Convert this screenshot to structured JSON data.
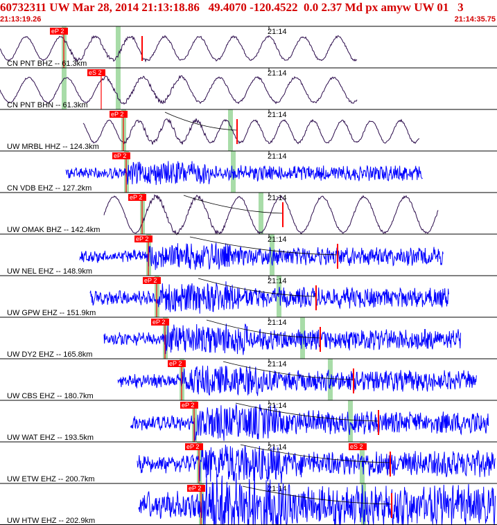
{
  "header": {
    "title": "60732311 UW Mar 28, 2014 21:13:18.86   49.4070 -120.4522  0.0 2.37 Md px amyw UW 01   3",
    "time_start": "21:13:19.26",
    "time_end": "21:14:35.75"
  },
  "colors": {
    "header_text": "#d40000",
    "broadband_trace": "#2a0a4a",
    "short_period_trace": "#0000ff",
    "pick_box": "#ff0000",
    "pick_line": "#ff0000",
    "window_band": "#a8dca8"
  },
  "minute_tick_label": "21:14",
  "traces": [
    {
      "label": "CN PNT BHZ -- 61.3km",
      "pick": "eP 2",
      "type": "bb",
      "start": 0,
      "end": 515,
      "amp": 17,
      "period": 50,
      "pick_x": 92,
      "s_x": 205,
      "s_label": "",
      "green1": 92,
      "green2": 170
    },
    {
      "label": "CN PNT BHN -- 61.3km",
      "pick": "eS 2",
      "type": "bb",
      "start": 0,
      "end": 515,
      "amp": 18,
      "period": 55,
      "pick_x": 146,
      "s_x": 0,
      "s_label": "",
      "green1": 92,
      "green2": 170
    },
    {
      "label": "UW MRBL HHZ -- 124.3km",
      "pick": "eP 2",
      "type": "bb",
      "start": 120,
      "end": 605,
      "amp": 16,
      "period": 42,
      "pick_x": 178,
      "s_x": 342,
      "s_label": "",
      "green1": 178,
      "green2": 332
    },
    {
      "label": "CN VDB EHZ -- 127.2km",
      "pick": "eP 2",
      "type": "sp",
      "start": 95,
      "end": 610,
      "amp": 6,
      "period": 6,
      "pick_x": 182,
      "s_x": 0,
      "s_label": "",
      "green1": 182,
      "green2": 336
    },
    {
      "label": "UW OMAK BHZ -- 142.4km",
      "pick": "eP 2",
      "type": "bb",
      "start": 150,
      "end": 632,
      "amp": 26,
      "period": 60,
      "pick_x": 205,
      "s_x": 408,
      "s_label": "",
      "green1": 205,
      "green2": 376
    },
    {
      "label": "UW NEL EHZ -- 148.9km",
      "pick": "eP 2",
      "type": "sp",
      "start": 115,
      "end": 640,
      "amp": 7,
      "period": 6,
      "pick_x": 214,
      "s_x": 487,
      "s_label": "",
      "green1": 214,
      "green2": 392
    },
    {
      "label": "UW GPW EHZ -- 151.9km",
      "pick": "eP 2",
      "type": "sp",
      "start": 130,
      "end": 648,
      "amp": 8,
      "period": 6,
      "pick_x": 226,
      "s_x": 456,
      "s_label": "",
      "green1": 226,
      "green2": 402
    },
    {
      "label": "UW DY2 EHZ -- 165.8km",
      "pick": "eP 2",
      "type": "sp",
      "start": 150,
      "end": 665,
      "amp": 8,
      "period": 6,
      "pick_x": 238,
      "s_x": 462,
      "s_label": "",
      "green1": 238,
      "green2": 436
    },
    {
      "label": "UW CBS EHZ -- 180.7km",
      "pick": "eP 2",
      "type": "sp",
      "start": 170,
      "end": 688,
      "amp": 8,
      "period": 6,
      "pick_x": 262,
      "s_x": 510,
      "s_label": "",
      "green1": 262,
      "green2": 476
    },
    {
      "label": "UW WAT EHZ -- 193.5km",
      "pick": "eP 2",
      "type": "sp",
      "start": 188,
      "end": 705,
      "amp": 9,
      "period": 6,
      "pick_x": 280,
      "s_x": 546,
      "s_label": "",
      "green1": 280,
      "green2": 505
    },
    {
      "label": "UW ETW EHZ -- 200.7km",
      "pick": "eP 2",
      "type": "sp",
      "start": 198,
      "end": 715,
      "amp": 10,
      "period": 6,
      "pick_x": 287,
      "s_x": 563,
      "s_label": "eS 2",
      "green1": 287,
      "green2": 522
    },
    {
      "label": "UW HTW EHZ -- 202.9km",
      "pick": "eP 2",
      "type": "sp",
      "start": 200,
      "end": 715,
      "amp": 16,
      "period": 6,
      "pick_x": 290,
      "s_x": 565,
      "s_label": "",
      "green1": 290,
      "green2": 524
    }
  ]
}
